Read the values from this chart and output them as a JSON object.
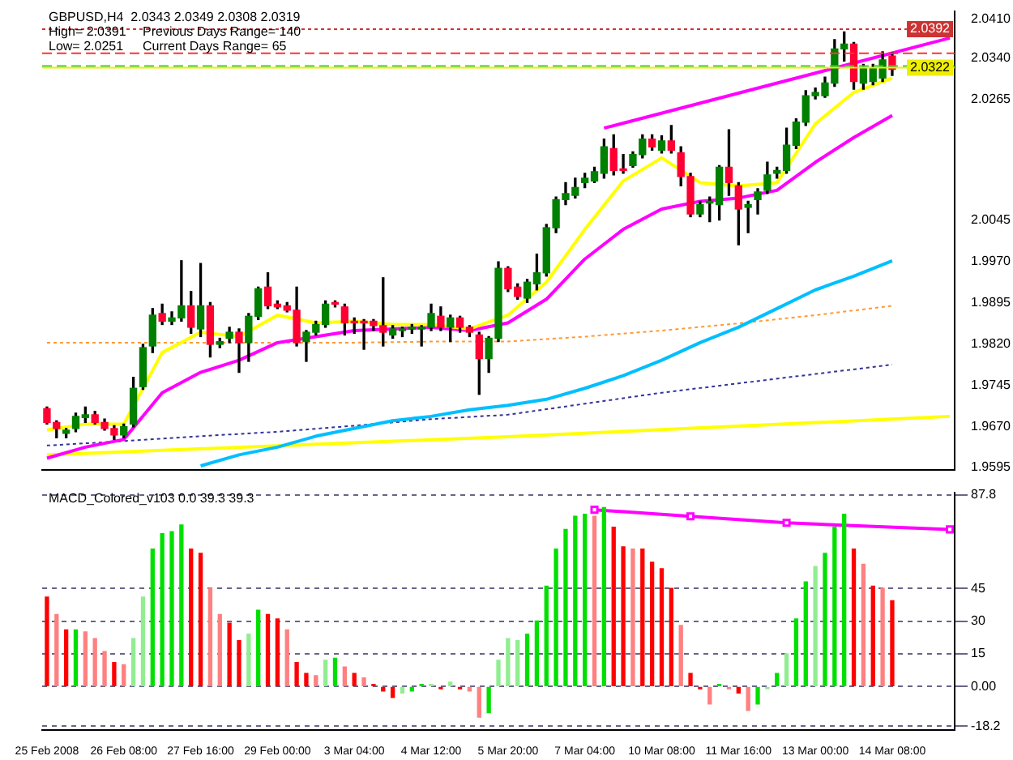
{
  "chart_data": [
    {
      "type": "candlestick",
      "title": "GBPUSD,H4  2.0343 2.0349 2.0308 2.0319",
      "annotations": [
        "High= 2.0391",
        "Previous Days Range= 140",
        "Low= 2.0251",
        "Current Days Range= 65"
      ],
      "categories": [
        null,
        null,
        null,
        null,
        null,
        null,
        null,
        null,
        null,
        null,
        null,
        null,
        null,
        null,
        null,
        null,
        null,
        null,
        null,
        null,
        null,
        null,
        null,
        null,
        null,
        null,
        null,
        null,
        null,
        null,
        null,
        null,
        null,
        null,
        null,
        null,
        null,
        null,
        null,
        null,
        null,
        null,
        null,
        null,
        null,
        null,
        null,
        null,
        null,
        null,
        null,
        null,
        null,
        null,
        null,
        null,
        null,
        null,
        null,
        null,
        null,
        null,
        null,
        null,
        null,
        null,
        null,
        null,
        null,
        null,
        null,
        null,
        null,
        null,
        null,
        null,
        null,
        null,
        null,
        null,
        null,
        null,
        null,
        null,
        null,
        null,
        null,
        null,
        null,
        null,
        null,
        null,
        null,
        null,
        null
      ],
      "ohlc": [
        [
          1.9702,
          1.9705,
          1.9674,
          1.9677
        ],
        [
          1.9677,
          1.968,
          1.9649,
          1.9666
        ],
        [
          1.9657,
          1.9666,
          1.9649,
          1.9663
        ],
        [
          1.9666,
          1.9694,
          1.966,
          1.9688
        ],
        [
          1.9686,
          1.9705,
          1.9677,
          1.9691
        ],
        [
          1.9691,
          1.9697,
          1.9674,
          1.9677
        ],
        [
          1.9677,
          1.9683,
          1.9663,
          1.9666
        ],
        [
          1.9666,
          1.9671,
          1.9646,
          1.9654
        ],
        [
          1.9654,
          1.9674,
          1.9649,
          1.9669
        ],
        [
          1.9674,
          1.9759,
          1.9669,
          1.9739
        ],
        [
          1.9742,
          1.9819,
          1.9737,
          1.9813
        ],
        [
          1.9816,
          1.9884,
          1.9804,
          1.9872
        ],
        [
          1.9875,
          1.9892,
          1.9855,
          1.9861
        ],
        [
          1.9861,
          1.9878,
          1.9855,
          1.9867
        ],
        [
          1.9867,
          1.9971,
          1.9861,
          1.9889
        ],
        [
          1.9889,
          1.9915,
          1.9839,
          1.985
        ],
        [
          1.9847,
          1.9966,
          1.9833,
          1.9889
        ],
        [
          1.9889,
          1.9895,
          1.9796,
          1.9819
        ],
        [
          1.9819,
          1.983,
          1.9813,
          1.9824
        ],
        [
          1.983,
          1.985,
          1.9822,
          1.9841
        ],
        [
          1.9841,
          1.9847,
          1.9768,
          1.9822
        ],
        [
          1.9822,
          1.9875,
          1.9788,
          1.987
        ],
        [
          1.987,
          1.9923,
          1.9864,
          1.992
        ],
        [
          1.9923,
          1.9949,
          1.9884,
          1.9889
        ],
        [
          1.9892,
          1.9898,
          1.9884,
          1.9887
        ],
        [
          1.9889,
          1.9895,
          1.9878,
          1.9881
        ],
        [
          1.9881,
          1.9923,
          1.9816,
          1.9822
        ],
        [
          1.9824,
          1.9844,
          1.9788,
          1.9841
        ],
        [
          1.9841,
          1.9861,
          1.9836,
          1.9855
        ],
        [
          1.9855,
          1.9898,
          1.985,
          1.9892
        ],
        [
          1.9895,
          1.9898,
          1.9887,
          1.9892
        ],
        [
          1.9887,
          1.9892,
          1.9836,
          1.9858
        ],
        [
          1.9861,
          1.9867,
          1.9839,
          1.9858
        ],
        [
          1.9861,
          1.9864,
          1.981,
          1.9858
        ],
        [
          1.9861,
          1.9864,
          1.9844,
          1.9853
        ],
        [
          1.9853,
          1.994,
          1.9816,
          1.9841
        ],
        [
          1.9836,
          1.9853,
          1.983,
          1.9847
        ],
        [
          1.9844,
          1.985,
          1.9833,
          1.9847
        ],
        [
          1.9847,
          1.9855,
          1.9839,
          1.985
        ],
        [
          1.9847,
          1.9853,
          1.9816,
          1.985
        ],
        [
          1.985,
          1.9892,
          1.9844,
          1.9875
        ],
        [
          1.987,
          1.9887,
          1.9844,
          1.985
        ],
        [
          1.985,
          1.9872,
          1.9824,
          1.9867
        ],
        [
          1.9867,
          1.987,
          1.9841,
          1.985
        ],
        [
          1.985,
          1.9853,
          1.9833,
          1.9841
        ],
        [
          1.9836,
          1.9841,
          1.9728,
          1.9793
        ],
        [
          1.9793,
          1.9833,
          1.9768,
          1.983
        ],
        [
          1.983,
          1.9969,
          1.9824,
          1.9957
        ],
        [
          1.9957,
          1.996,
          1.9915,
          1.992
        ],
        [
          1.9923,
          1.9929,
          1.9901,
          1.9906
        ],
        [
          1.9903,
          1.9937,
          1.9895,
          1.9932
        ],
        [
          1.9929,
          1.9983,
          1.9918,
          1.9949
        ],
        [
          1.9949,
          2.0037,
          1.9943,
          2.0031
        ],
        [
          2.0031,
          2.0087,
          2.0022,
          2.0082
        ],
        [
          2.0082,
          2.0113,
          2.0073,
          2.0093
        ],
        [
          2.009,
          2.0121,
          2.0085,
          2.0104
        ],
        [
          2.0113,
          2.013,
          2.0104,
          2.0121
        ],
        [
          2.0116,
          2.0141,
          2.0113,
          2.0133
        ],
        [
          2.013,
          2.0192,
          2.0121,
          2.0178
        ],
        [
          2.0175,
          2.02,
          2.0127,
          2.0135
        ],
        [
          2.0138,
          2.0164,
          2.013,
          2.0135
        ],
        [
          2.0144,
          2.0169,
          2.0141,
          2.0164
        ],
        [
          2.0164,
          2.02,
          2.0158,
          2.0192
        ],
        [
          2.0192,
          2.02,
          2.0172,
          2.0178
        ],
        [
          2.0172,
          2.0198,
          2.0167,
          2.0189
        ],
        [
          2.0189,
          2.0217,
          2.0167,
          2.0172
        ],
        [
          2.0167,
          2.0178,
          2.0107,
          2.0124
        ],
        [
          2.0124,
          2.013,
          2.0051,
          2.0056
        ],
        [
          2.0056,
          2.0079,
          2.0051,
          2.0073
        ],
        [
          2.0076,
          2.0087,
          2.0042,
          2.0079
        ],
        [
          2.0073,
          2.0144,
          2.0045,
          2.0141
        ],
        [
          2.0141,
          2.0209,
          2.009,
          2.0113
        ],
        [
          2.0107,
          2.0113,
          2.0,
          2.0065
        ],
        [
          2.0068,
          2.0079,
          2.0022,
          2.0073
        ],
        [
          2.0082,
          2.0102,
          2.0056,
          2.0096
        ],
        [
          2.0099,
          2.015,
          2.0093,
          2.0127
        ],
        [
          2.013,
          2.0141,
          2.0121,
          2.0135
        ],
        [
          2.0135,
          2.0212,
          2.013,
          2.0181
        ],
        [
          2.0181,
          2.0229,
          2.0175,
          2.0223
        ],
        [
          2.0223,
          2.028,
          2.0217,
          2.0271
        ],
        [
          2.0271,
          2.0285,
          2.0265,
          2.0277
        ],
        [
          2.0271,
          2.0305,
          2.0268,
          2.0294
        ],
        [
          2.0294,
          2.0373,
          2.0288,
          2.0356
        ],
        [
          2.0356,
          2.0387,
          2.0334,
          2.0365
        ],
        [
          2.0365,
          2.0368,
          2.0283,
          2.0297
        ],
        [
          2.0294,
          2.0328,
          2.0283,
          2.0322
        ],
        [
          2.0297,
          2.0328,
          2.0291,
          2.0322
        ],
        [
          2.0303,
          2.0351,
          2.0297,
          2.0336
        ],
        [
          2.0343,
          2.0349,
          2.0308,
          2.0319
        ],
        null,
        null,
        null,
        null,
        null,
        null
      ],
      "series": [
        {
          "type": "line",
          "color": "#ffff00",
          "line_style": "solid",
          "values": [
            1.9663,
            null,
            null,
            null,
            1.9674,
            null,
            null,
            null,
            1.9674,
            null,
            null,
            null,
            1.9804,
            null,
            null,
            null,
            1.9841,
            null,
            null,
            null,
            1.9833,
            null,
            null,
            null,
            1.9872,
            null,
            null,
            null,
            1.9858,
            null,
            null,
            null,
            1.9861,
            null,
            null,
            null,
            1.9855,
            null,
            null,
            null,
            1.9855,
            null,
            null,
            null,
            1.9847,
            null,
            null,
            null,
            1.9872,
            null,
            null,
            null,
            1.9932,
            null,
            null,
            null,
            2.0028,
            null,
            null,
            null,
            2.0116,
            null,
            null,
            null,
            2.0158,
            null,
            null,
            null,
            2.0113,
            null,
            null,
            null,
            2.0107,
            null,
            null,
            null,
            2.0113,
            null,
            null,
            null,
            2.022,
            null,
            null,
            null,
            2.0277,
            null,
            null,
            null,
            2.0303,
            null,
            null,
            null,
            null,
            null,
            null
          ]
        },
        {
          "type": "line",
          "color": "#ff00ff",
          "line_style": "solid",
          "values": [
            1.9612,
            null,
            null,
            null,
            1.9632,
            null,
            null,
            null,
            1.9646,
            null,
            null,
            null,
            1.9731,
            null,
            null,
            null,
            1.9768,
            null,
            null,
            null,
            1.979,
            null,
            null,
            null,
            1.9822,
            null,
            null,
            null,
            1.9833,
            null,
            null,
            null,
            1.9844,
            null,
            null,
            null,
            1.9847,
            null,
            null,
            null,
            1.985,
            null,
            null,
            null,
            1.9844,
            null,
            null,
            null,
            1.9858,
            null,
            null,
            null,
            1.9901,
            null,
            null,
            null,
            1.9974,
            null,
            null,
            null,
            2.0028,
            null,
            null,
            null,
            2.0065,
            null,
            null,
            null,
            2.0079,
            null,
            null,
            null,
            2.0085,
            null,
            null,
            null,
            2.0099,
            null,
            null,
            null,
            2.015,
            null,
            null,
            null,
            2.0195,
            null,
            null,
            null,
            2.0235,
            null,
            null,
            null,
            null,
            null,
            null
          ]
        },
        {
          "type": "line",
          "color": "#00bfff",
          "line_style": "solid",
          "values": [
            null,
            null,
            null,
            null,
            null,
            null,
            null,
            null,
            null,
            null,
            null,
            null,
            null,
            null,
            null,
            null,
            1.9598,
            null,
            null,
            null,
            1.9618,
            null,
            null,
            null,
            1.9632,
            null,
            null,
            null,
            1.9652,
            null,
            null,
            null,
            1.9666,
            null,
            null,
            null,
            1.968,
            null,
            null,
            null,
            1.9688,
            null,
            null,
            null,
            1.97,
            null,
            null,
            null,
            1.9708,
            null,
            null,
            null,
            1.9719,
            null,
            null,
            null,
            1.9739,
            null,
            null,
            null,
            1.9762,
            null,
            null,
            null,
            1.979,
            null,
            null,
            null,
            1.9822,
            null,
            null,
            null,
            1.985,
            null,
            null,
            null,
            1.9884,
            null,
            null,
            null,
            1.9918,
            null,
            null,
            null,
            1.9943,
            null,
            null,
            null,
            1.9971,
            null,
            null,
            null,
            null,
            null,
            null
          ]
        },
        {
          "type": "line",
          "color": "#ff9933",
          "line_style": "dotted",
          "values": [
            1.9822,
            null,
            null,
            null,
            null,
            null,
            null,
            null,
            1.9822,
            null,
            null,
            null,
            null,
            null,
            null,
            null,
            1.9822,
            null,
            null,
            null,
            null,
            null,
            null,
            null,
            1.9822,
            null,
            null,
            null,
            null,
            null,
            null,
            null,
            1.9822,
            null,
            null,
            null,
            null,
            null,
            null,
            null,
            1.9824,
            null,
            null,
            null,
            null,
            null,
            null,
            null,
            1.9824,
            null,
            null,
            null,
            null,
            null,
            null,
            null,
            1.9833,
            null,
            null,
            null,
            null,
            null,
            null,
            null,
            1.9844,
            null,
            null,
            null,
            null,
            null,
            null,
            null,
            1.9857,
            null,
            null,
            null,
            null,
            null,
            null,
            null,
            1.9872,
            null,
            null,
            null,
            null,
            null,
            null,
            null,
            1.9889,
            null,
            null,
            null,
            null,
            null,
            null
          ]
        },
        {
          "type": "line",
          "color": "#333399",
          "line_style": "dotted",
          "values": [
            1.9635,
            null,
            null,
            null,
            null,
            null,
            null,
            null,
            1.9643,
            null,
            null,
            null,
            null,
            null,
            null,
            null,
            1.9652,
            null,
            null,
            null,
            null,
            null,
            null,
            null,
            1.966,
            null,
            null,
            null,
            null,
            null,
            null,
            null,
            1.9671,
            null,
            null,
            null,
            null,
            null,
            null,
            null,
            1.9683,
            null,
            null,
            null,
            null,
            null,
            null,
            null,
            1.9691,
            null,
            null,
            null,
            null,
            null,
            null,
            null,
            1.9711,
            null,
            null,
            null,
            null,
            null,
            null,
            null,
            1.9731,
            null,
            null,
            null,
            null,
            null,
            null,
            null,
            1.9748,
            null,
            null,
            null,
            null,
            null,
            null,
            null,
            1.9765,
            null,
            null,
            null,
            null,
            null,
            null,
            null,
            1.9782,
            null,
            null,
            null,
            null,
            null,
            null
          ]
        },
        {
          "type": "line",
          "color": "#ffff00",
          "line_style": "solid",
          "values": [
            1.9618,
            null,
            null,
            null,
            null,
            null,
            null,
            null,
            null,
            null,
            null,
            null,
            null,
            null,
            null,
            null,
            null,
            null,
            null,
            null,
            null,
            null,
            null,
            null,
            null,
            null,
            null,
            null,
            null,
            null,
            null,
            null,
            null,
            null,
            null,
            null,
            null,
            null,
            null,
            null,
            null,
            null,
            null,
            null,
            null,
            null,
            null,
            null,
            1.9651,
            null,
            null,
            null,
            null,
            null,
            null,
            null,
            null,
            null,
            null,
            null,
            null,
            null,
            null,
            null,
            null,
            null,
            null,
            null,
            null,
            null,
            null,
            null,
            null,
            null,
            null,
            null,
            null,
            null,
            null,
            null,
            null,
            null,
            null,
            null,
            null,
            null,
            null,
            null,
            1.9683,
            null,
            null,
            null,
            null,
            null,
            1.9688
          ]
        },
        {
          "type": "line",
          "color": "#ff00ff",
          "line_style": "solid",
          "values": [
            null,
            null,
            null,
            null,
            null,
            null,
            null,
            null,
            null,
            null,
            null,
            null,
            null,
            null,
            null,
            null,
            null,
            null,
            null,
            null,
            null,
            null,
            null,
            null,
            null,
            null,
            null,
            null,
            null,
            null,
            null,
            null,
            null,
            null,
            null,
            null,
            null,
            null,
            null,
            null,
            null,
            null,
            null,
            null,
            null,
            null,
            null,
            null,
            null,
            null,
            null,
            null,
            null,
            null,
            null,
            null,
            null,
            null,
            2.0212,
            null,
            null,
            null,
            null,
            null,
            null,
            null,
            null,
            null,
            null,
            null,
            null,
            null,
            null,
            null,
            null,
            null,
            null,
            null,
            null,
            null,
            null,
            null,
            null,
            null,
            null,
            null,
            null,
            null,
            null,
            null,
            null,
            null,
            null,
            null,
            2.0376
          ]
        }
      ],
      "ref_lines": [
        {
          "axis": "y",
          "value": 2.0392,
          "label": "2.0392",
          "color": "#cc3333",
          "line_style": "dotted"
        },
        {
          "axis": "y",
          "value": 2.0348,
          "color": "#ff3333",
          "line_style": "dashed"
        },
        {
          "axis": "y",
          "value": 2.0325,
          "color": "#33cc33",
          "line_style": "dashed"
        },
        {
          "axis": "y",
          "value": 2.0322,
          "label": "2.0322",
          "color": "#eeee00",
          "line_style": "solid"
        }
      ],
      "ylim": [
        1.959,
        2.0425
      ],
      "yticks": [
        {
          "value": 2.041,
          "label": "2.0410"
        },
        {
          "value": 2.034,
          "label": "2.0340"
        },
        2.0265,
        2.0045,
        {
          "value": 1.997,
          "label": "1.9970"
        },
        1.9895,
        {
          "value": 1.982,
          "label": "1.9820"
        },
        1.9745,
        {
          "value": 1.967,
          "label": "1.9670"
        },
        1.9595
      ],
      "tick_labels": "y",
      "legend": false
    },
    {
      "type": "bar",
      "title": "MACD_Colored_v103 0.0 39.3 39.3",
      "categories": [
        "25 Feb 2008",
        null,
        null,
        null,
        null,
        null,
        null,
        null,
        "26 Feb 08:00",
        null,
        null,
        null,
        null,
        null,
        null,
        null,
        "27 Feb 16:00",
        null,
        null,
        null,
        null,
        null,
        null,
        null,
        "29 Feb 00:00",
        null,
        null,
        null,
        null,
        null,
        null,
        null,
        "3 Mar 04:00",
        null,
        null,
        null,
        null,
        null,
        null,
        null,
        "4 Mar 12:00",
        null,
        null,
        null,
        null,
        null,
        null,
        null,
        "5 Mar 20:00",
        null,
        null,
        null,
        null,
        null,
        null,
        null,
        "7 Mar 04:00",
        null,
        null,
        null,
        null,
        null,
        null,
        null,
        "10 Mar 08:00",
        null,
        null,
        null,
        null,
        null,
        null,
        null,
        "11 Mar 16:00",
        null,
        null,
        null,
        null,
        null,
        null,
        null,
        "13 Mar 00:00",
        null,
        null,
        null,
        null,
        null,
        null,
        null,
        "14 Mar 08:00",
        null,
        null,
        null,
        null,
        null,
        null
      ],
      "values": [
        41,
        33,
        26,
        26,
        25,
        22,
        16,
        11,
        10,
        22,
        41,
        63,
        70,
        71,
        74,
        63,
        61,
        45,
        33,
        29,
        21,
        24,
        35,
        33,
        31,
        26,
        11,
        6,
        5,
        12,
        13,
        9,
        6,
        4,
        1,
        -2,
        -5,
        -3,
        -2,
        1,
        1,
        -1,
        2,
        -1,
        -2,
        -14,
        -12,
        12,
        22,
        21,
        24,
        30,
        46,
        63,
        72,
        78,
        79,
        78,
        82,
        73,
        64,
        63,
        63,
        57,
        54,
        45,
        28,
        6,
        -1,
        -8,
        1,
        -1,
        -3,
        -11,
        -8,
        -1,
        6,
        15,
        31,
        48,
        55,
        61,
        73,
        79,
        63,
        56,
        46,
        45,
        39.3,
        null,
        null,
        null,
        null,
        null,
        null
      ],
      "colors": [
        "#ff0000",
        "#ff8080",
        "#ff0000",
        "#00e000",
        "#ff8080",
        "#ff8080",
        "#ff8080",
        "#ff0000",
        "#ff8080",
        "#90ee90",
        "#90ee90",
        "#00e000",
        "#00e000",
        "#00e000",
        "#00e000",
        "#ff0000",
        "#ff0000",
        "#ff8080",
        "#ff8080",
        "#ff0000",
        "#ff0000",
        "#90ee90",
        "#00e000",
        "#ff0000",
        "#ff0000",
        "#ff8080",
        "#ff0000",
        "#ff0000",
        "#ff8080",
        "#90ee90",
        "#00e000",
        "#ff8080",
        "#ff0000",
        "#ff8080",
        "#ff0000",
        "#ff0000",
        "#ff0000",
        "#90ee90",
        "#00e000",
        "#00e000",
        "#90ee90",
        "#ff0000",
        "#90ee90",
        "#ff0000",
        "#ff8080",
        "#ff8080",
        "#00e000",
        "#90ee90",
        "#90ee90",
        "#90ee90",
        "#00e000",
        "#00e000",
        "#00e000",
        "#00e000",
        "#00e000",
        "#00e000",
        "#00e000",
        "#ff8080",
        "#00e000",
        "#ff0000",
        "#ff0000",
        "#ff8080",
        "#ff0000",
        "#ff0000",
        "#ff0000",
        "#ff0000",
        "#ff8080",
        "#ff0000",
        "#ff0000",
        "#ff8080",
        "#00e000",
        "#ff8080",
        "#ff0000",
        "#ff8080",
        "#00e000",
        "#90ee90",
        "#00e000",
        "#90ee90",
        "#00e000",
        "#00e000",
        "#90ee90",
        "#00e000",
        "#00e000",
        "#00e000",
        "#ff0000",
        "#ff8080",
        "#ff0000",
        "#ff8080",
        "#ff0000",
        null,
        null,
        null,
        null,
        null,
        null
      ],
      "series": [
        {
          "type": "line",
          "color": "#ff00ff",
          "marker": "square",
          "values": [
            null,
            null,
            null,
            null,
            null,
            null,
            null,
            null,
            null,
            null,
            null,
            null,
            null,
            null,
            null,
            null,
            null,
            null,
            null,
            null,
            null,
            null,
            null,
            null,
            null,
            null,
            null,
            null,
            null,
            null,
            null,
            null,
            null,
            null,
            null,
            null,
            null,
            null,
            null,
            null,
            null,
            null,
            null,
            null,
            null,
            null,
            null,
            null,
            null,
            null,
            null,
            null,
            null,
            null,
            null,
            null,
            null,
            81,
            null,
            null,
            null,
            null,
            null,
            null,
            null,
            null,
            null,
            78,
            null,
            null,
            null,
            null,
            null,
            null,
            null,
            null,
            null,
            75,
            null,
            null,
            null,
            null,
            null,
            null,
            null,
            null,
            null,
            null,
            null,
            null,
            null,
            null,
            null,
            null,
            72
          ]
        }
      ],
      "ylim": [
        -20,
        89
      ],
      "yticks": [
        87.8,
        45,
        30,
        15,
        {
          "value": 0,
          "label": "0.00"
        },
        -18.2
      ],
      "grid": "y",
      "legend": false
    }
  ]
}
